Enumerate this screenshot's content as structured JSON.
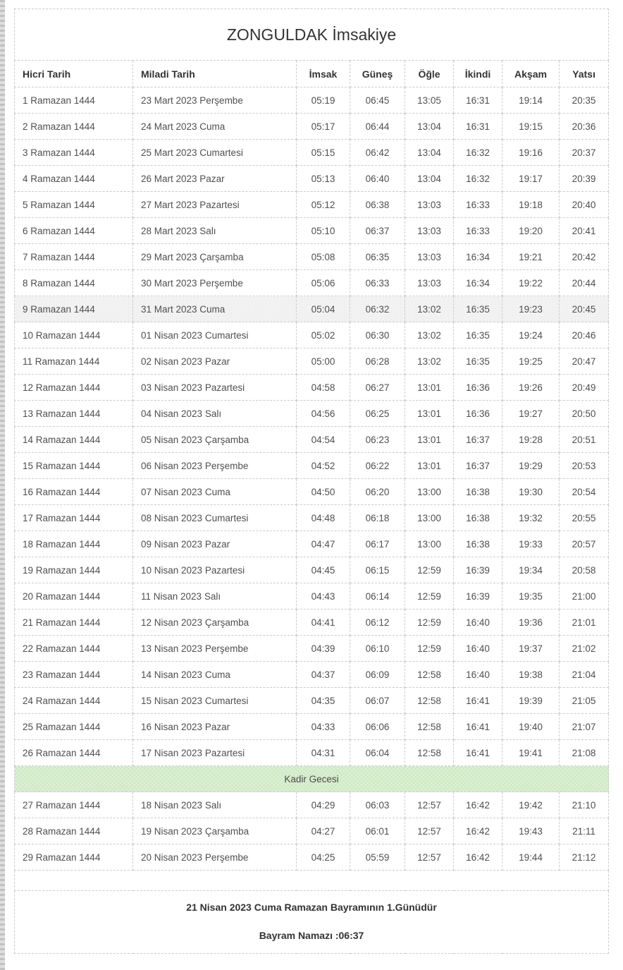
{
  "title": "ZONGULDAK İmsakiye",
  "table": {
    "columns": [
      "Hicri Tarih",
      "Miladi Tarih",
      "İmsak",
      "Güneş",
      "Öğle",
      "İkindi",
      "Akşam",
      "Yatsı"
    ],
    "column_keys": [
      "hicri-tarih",
      "miladi-tarih",
      "imsak",
      "gunes",
      "ogle",
      "ikindi",
      "aksam",
      "yatsi"
    ],
    "rows": [
      {
        "cells": [
          "1 Ramazan 1444",
          "23 Mart 2023 Perşembe",
          "05:19",
          "06:45",
          "13:05",
          "16:31",
          "19:14",
          "20:35"
        ]
      },
      {
        "cells": [
          "2 Ramazan 1444",
          "24 Mart 2023 Cuma",
          "05:17",
          "06:44",
          "13:04",
          "16:31",
          "19:15",
          "20:36"
        ]
      },
      {
        "cells": [
          "3 Ramazan 1444",
          "25 Mart 2023 Cumartesi",
          "05:15",
          "06:42",
          "13:04",
          "16:32",
          "19:16",
          "20:37"
        ]
      },
      {
        "cells": [
          "4 Ramazan 1444",
          "26 Mart 2023 Pazar",
          "05:13",
          "06:40",
          "13:04",
          "16:32",
          "19:17",
          "20:39"
        ]
      },
      {
        "cells": [
          "5 Ramazan 1444",
          "27 Mart 2023 Pazartesi",
          "05:12",
          "06:38",
          "13:03",
          "16:33",
          "19:18",
          "20:40"
        ]
      },
      {
        "cells": [
          "6 Ramazan 1444",
          "28 Mart 2023 Salı",
          "05:10",
          "06:37",
          "13:03",
          "16:33",
          "19:20",
          "20:41"
        ]
      },
      {
        "cells": [
          "7 Ramazan 1444",
          "29 Mart 2023 Çarşamba",
          "05:08",
          "06:35",
          "13:03",
          "16:34",
          "19:21",
          "20:42"
        ]
      },
      {
        "cells": [
          "8 Ramazan 1444",
          "30 Mart 2023 Perşembe",
          "05:06",
          "06:33",
          "13:03",
          "16:34",
          "19:22",
          "20:44"
        ]
      },
      {
        "cells": [
          "9 Ramazan 1444",
          "31 Mart 2023 Cuma",
          "05:04",
          "06:32",
          "13:02",
          "16:35",
          "19:23",
          "20:45"
        ],
        "highlighted": true
      },
      {
        "cells": [
          "10 Ramazan 1444",
          "01 Nisan 2023 Cumartesi",
          "05:02",
          "06:30",
          "13:02",
          "16:35",
          "19:24",
          "20:46"
        ]
      },
      {
        "cells": [
          "11 Ramazan 1444",
          "02 Nisan 2023 Pazar",
          "05:00",
          "06:28",
          "13:02",
          "16:35",
          "19:25",
          "20:47"
        ]
      },
      {
        "cells": [
          "12 Ramazan 1444",
          "03 Nisan 2023 Pazartesi",
          "04:58",
          "06:27",
          "13:01",
          "16:36",
          "19:26",
          "20:49"
        ]
      },
      {
        "cells": [
          "13 Ramazan 1444",
          "04 Nisan 2023 Salı",
          "04:56",
          "06:25",
          "13:01",
          "16:36",
          "19:27",
          "20:50"
        ]
      },
      {
        "cells": [
          "14 Ramazan 1444",
          "05 Nisan 2023 Çarşamba",
          "04:54",
          "06:23",
          "13:01",
          "16:37",
          "19:28",
          "20:51"
        ]
      },
      {
        "cells": [
          "15 Ramazan 1444",
          "06 Nisan 2023 Perşembe",
          "04:52",
          "06:22",
          "13:01",
          "16:37",
          "19:29",
          "20:53"
        ]
      },
      {
        "cells": [
          "16 Ramazan 1444",
          "07 Nisan 2023 Cuma",
          "04:50",
          "06:20",
          "13:00",
          "16:38",
          "19:30",
          "20:54"
        ]
      },
      {
        "cells": [
          "17 Ramazan 1444",
          "08 Nisan 2023 Cumartesi",
          "04:48",
          "06:18",
          "13:00",
          "16:38",
          "19:32",
          "20:55"
        ]
      },
      {
        "cells": [
          "18 Ramazan 1444",
          "09 Nisan 2023 Pazar",
          "04:47",
          "06:17",
          "13:00",
          "16:38",
          "19:33",
          "20:57"
        ]
      },
      {
        "cells": [
          "19 Ramazan 1444",
          "10 Nisan 2023 Pazartesi",
          "04:45",
          "06:15",
          "12:59",
          "16:39",
          "19:34",
          "20:58"
        ]
      },
      {
        "cells": [
          "20 Ramazan 1444",
          "11 Nisan 2023 Salı",
          "04:43",
          "06:14",
          "12:59",
          "16:39",
          "19:35",
          "21:00"
        ]
      },
      {
        "cells": [
          "21 Ramazan 1444",
          "12 Nisan 2023 Çarşamba",
          "04:41",
          "06:12",
          "12:59",
          "16:40",
          "19:36",
          "21:01"
        ]
      },
      {
        "cells": [
          "22 Ramazan 1444",
          "13 Nisan 2023 Perşembe",
          "04:39",
          "06:10",
          "12:59",
          "16:40",
          "19:37",
          "21:02"
        ]
      },
      {
        "cells": [
          "23 Ramazan 1444",
          "14 Nisan 2023 Cuma",
          "04:37",
          "06:09",
          "12:58",
          "16:40",
          "19:38",
          "21:04"
        ]
      },
      {
        "cells": [
          "24 Ramazan 1444",
          "15 Nisan 2023 Cumartesi",
          "04:35",
          "06:07",
          "12:58",
          "16:41",
          "19:39",
          "21:05"
        ]
      },
      {
        "cells": [
          "25 Ramazan 1444",
          "16 Nisan 2023 Pazar",
          "04:33",
          "06:06",
          "12:58",
          "16:41",
          "19:40",
          "21:07"
        ]
      },
      {
        "cells": [
          "26 Ramazan 1444",
          "17 Nisan 2023 Pazartesi",
          "04:31",
          "06:04",
          "12:58",
          "16:41",
          "19:41",
          "21:08"
        ]
      },
      {
        "banner": "Kadir Gecesi"
      },
      {
        "cells": [
          "27 Ramazan 1444",
          "18 Nisan 2023 Salı",
          "04:29",
          "06:03",
          "12:57",
          "16:42",
          "19:42",
          "21:10"
        ]
      },
      {
        "cells": [
          "28 Ramazan 1444",
          "19 Nisan 2023 Çarşamba",
          "04:27",
          "06:01",
          "12:57",
          "16:42",
          "19:43",
          "21:11"
        ]
      },
      {
        "cells": [
          "29 Ramazan 1444",
          "20 Nisan 2023 Perşembe",
          "04:25",
          "05:59",
          "12:57",
          "16:42",
          "19:44",
          "21:12"
        ]
      }
    ]
  },
  "footer": {
    "line1": "21 Nisan 2023 Cuma Ramazan Bayramının 1.Günüdür",
    "line2": "Bayram Namazı :06:37"
  },
  "colors": {
    "kadir_bg": "#e0f1d8",
    "highlight_bg": "#f4f4f4",
    "border": "#cccccc"
  }
}
